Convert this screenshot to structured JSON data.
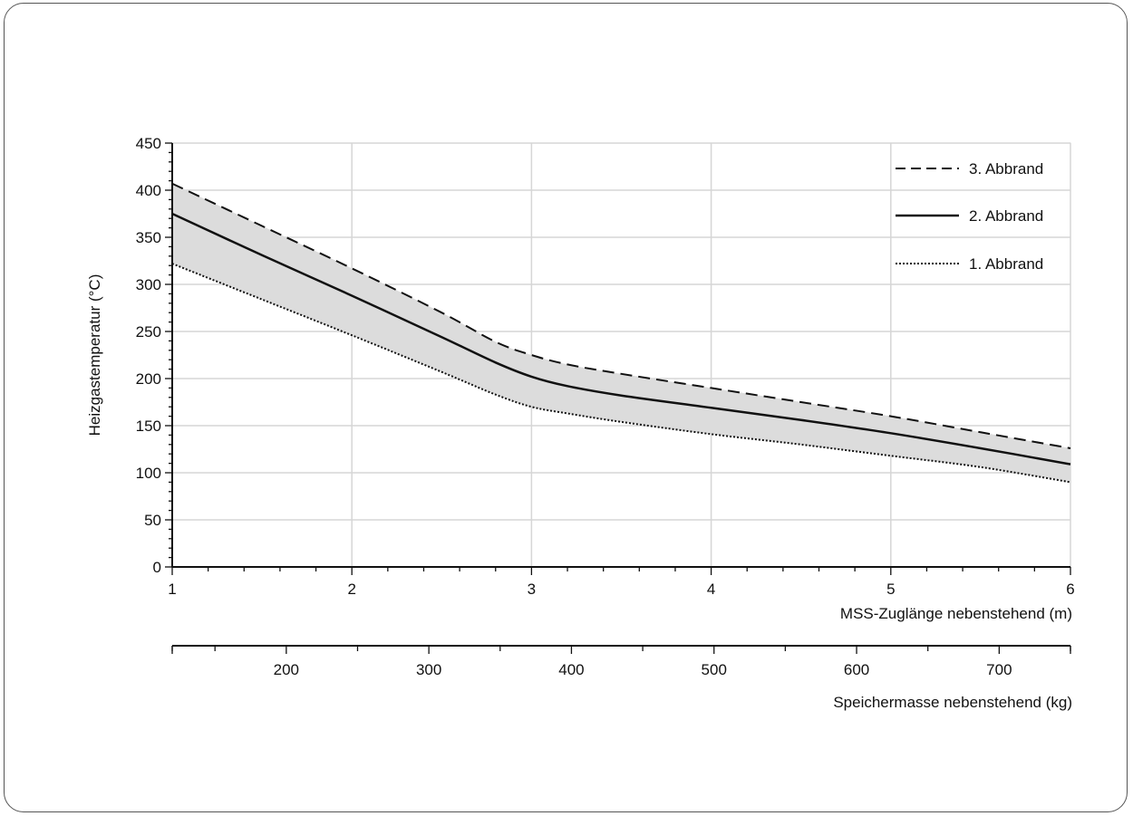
{
  "chart_data": {
    "type": "line",
    "ylabel": "Heizgastemperatur (°C)",
    "xlabel": "MSS-Zuglänge nebenstehend (m)",
    "x2label": "Speichermasse nebenstehend (kg)",
    "xlim": [
      1,
      6
    ],
    "ylim": [
      0,
      450
    ],
    "x_ticks": [
      1,
      2,
      3,
      4,
      5,
      6
    ],
    "y_ticks": [
      0,
      50,
      100,
      150,
      200,
      250,
      300,
      350,
      400,
      450
    ],
    "x2_range": [
      120,
      750
    ],
    "x2_ticks": [
      200,
      300,
      400,
      500,
      600,
      700
    ],
    "grid": true,
    "legend_position": "top-right",
    "band_between": [
      "1. Abbrand",
      "3. Abbrand"
    ],
    "band_color": "#dcdcdc",
    "series": [
      {
        "name": "3. Abbrand",
        "style": "dashed",
        "x": [
          1,
          1.5,
          2,
          2.5,
          2.8,
          3,
          3.2,
          3.5,
          4,
          4.5,
          5,
          5.5,
          6
        ],
        "y": [
          407,
          362,
          317,
          270,
          239,
          225,
          215,
          205,
          190,
          175,
          160,
          143,
          126
        ]
      },
      {
        "name": "2. Abbrand",
        "style": "solid",
        "x": [
          1,
          1.5,
          2,
          2.5,
          2.8,
          3,
          3.2,
          3.5,
          4,
          4.5,
          5,
          5.5,
          6
        ],
        "y": [
          375,
          331,
          288,
          244,
          217,
          202,
          192,
          182,
          169,
          156,
          142,
          126,
          109
        ]
      },
      {
        "name": "1. Abbrand",
        "style": "dotted",
        "x": [
          1,
          1.5,
          2,
          2.5,
          2.8,
          3,
          3.2,
          3.5,
          4,
          4.5,
          5,
          5.5,
          6
        ],
        "y": [
          322,
          284,
          246,
          207,
          183,
          170,
          163,
          154,
          141,
          130,
          118,
          106,
          90
        ]
      }
    ]
  }
}
